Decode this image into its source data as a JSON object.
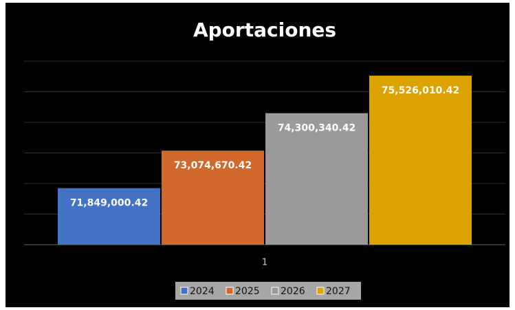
{
  "chart_data": {
    "type": "bar",
    "title": "Aportaciones",
    "categories": [
      "1"
    ],
    "series": [
      {
        "name": "2024",
        "color": "#4472c4",
        "values": [
          71849000.42
        ],
        "value_labels": [
          "71,849,000.42"
        ]
      },
      {
        "name": "2025",
        "color": "#d0692b",
        "values": [
          73074670.42
        ],
        "value_labels": [
          "73,074,670.42"
        ]
      },
      {
        "name": "2026",
        "color": "#9a9a9a",
        "values": [
          74300340.42
        ],
        "value_labels": [
          "74,300,340.42"
        ]
      },
      {
        "name": "2027",
        "color": "#dca200",
        "values": [
          75526010.42
        ],
        "value_labels": [
          "75,526,010.42"
        ]
      }
    ],
    "ylim": [
      70000000,
      76000000
    ],
    "yticks": [
      70000000,
      71000000,
      72000000,
      73000000,
      74000000,
      75000000,
      76000000
    ],
    "grid": true,
    "legend": "bottom"
  }
}
